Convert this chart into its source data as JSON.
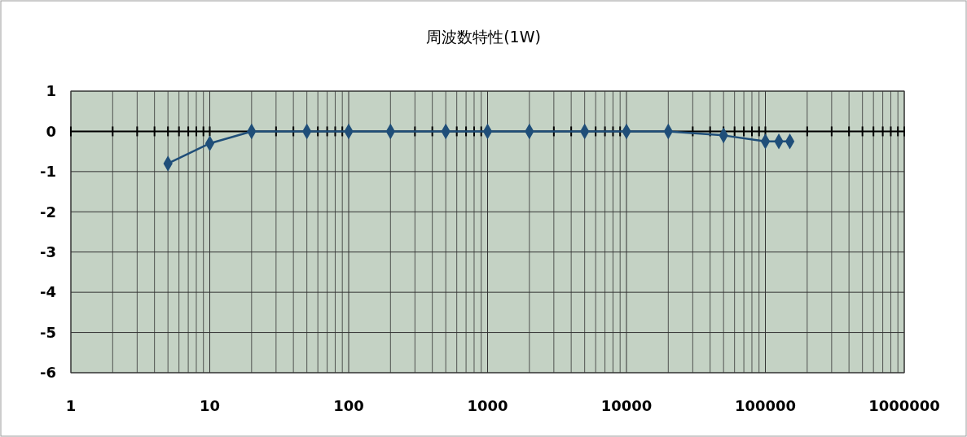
{
  "chart_data": {
    "type": "line",
    "title": "周波数特性(1W)",
    "x": [
      5,
      10,
      20,
      50,
      100,
      200,
      500,
      1000,
      2000,
      5000,
      10000,
      20000,
      50000,
      100000,
      125000,
      150000
    ],
    "series": [
      {
        "color": "#1f4e79",
        "values": [
          -0.8,
          -0.3,
          0,
          0,
          0,
          0,
          0,
          0,
          0,
          0,
          0,
          0,
          -0.1,
          -0.25,
          -0.25,
          -0.25
        ]
      }
    ],
    "xlim": [
      1,
      1000000
    ],
    "xticks": [
      1,
      10,
      100,
      1000,
      10000,
      100000,
      1000000
    ],
    "ylim": [
      -6,
      1
    ],
    "yticks": [
      -6,
      -5,
      -4,
      -3,
      -2,
      -1,
      0,
      1
    ],
    "log": "x",
    "grid": true,
    "marker": "diamond"
  }
}
